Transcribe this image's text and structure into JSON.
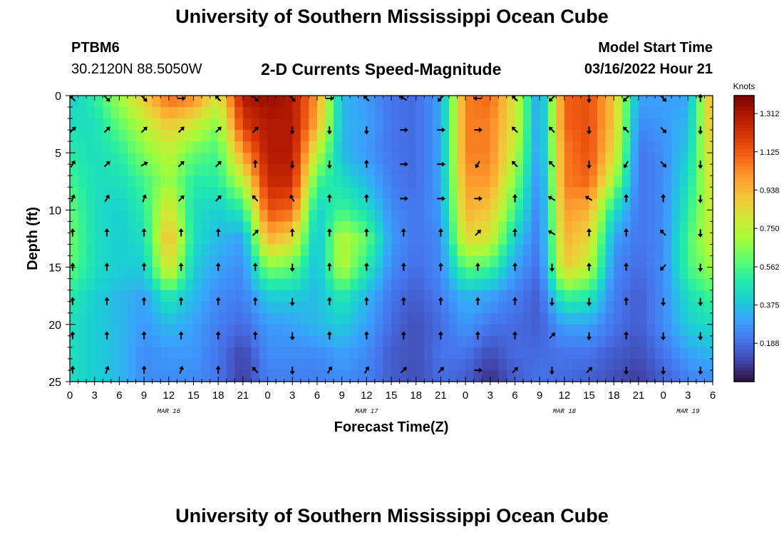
{
  "header": {
    "title": "University of Southern Mississippi Ocean Cube",
    "station": "PTBM6",
    "coords": "30.2120N  88.5050W",
    "subtitle": "2-D Currents Speed-Magnitude",
    "model_start_label": "Model Start Time",
    "model_start_value": "03/16/2022 Hour 21"
  },
  "footer": {
    "title": "University of Southern Mississippi Ocean Cube"
  },
  "chart_data": {
    "type": "heatmap",
    "title": "2-D Currents Speed-Magnitude",
    "xlabel": "Forecast Time(Z)",
    "ylabel": "Depth (ft)",
    "x_range_hours": [
      0,
      78
    ],
    "y_range_ft": [
      0,
      25
    ],
    "y_inverted": true,
    "x_tick_labels": [
      "0",
      "3",
      "6",
      "9",
      "12",
      "15",
      "18",
      "21",
      "0",
      "3",
      "6",
      "9",
      "12",
      "15",
      "18",
      "21",
      "0",
      "3",
      "6",
      "9",
      "12",
      "15",
      "18",
      "21",
      "0",
      "3",
      "6"
    ],
    "y_tick_labels": [
      "0",
      "5",
      "10",
      "15",
      "20",
      "25"
    ],
    "y_tick_values": [
      0,
      5,
      10,
      15,
      20,
      25
    ],
    "date_labels": [
      {
        "label": "MAR 16",
        "hour": 12
      },
      {
        "label": "MAR 17",
        "hour": 36
      },
      {
        "label": "MAR 18",
        "hour": 60
      },
      {
        "label": "MAR 19",
        "hour": 75
      }
    ],
    "colorbar": {
      "title": "Knots",
      "ticks": [
        "1.312",
        "1.125",
        "0.938",
        "0.750",
        "0.562",
        "0.375",
        "0.188"
      ],
      "tick_values": [
        1.312,
        1.125,
        0.938,
        0.75,
        0.562,
        0.375,
        0.188
      ],
      "min": 0.0,
      "max": 1.4,
      "colors": [
        "#30123b",
        "#4145ab",
        "#4675ed",
        "#39a2fc",
        "#1bcfd4",
        "#24eca6",
        "#61fc6c",
        "#a4fc3b",
        "#d1e834",
        "#f3c63a",
        "#fe9b2d",
        "#f36315",
        "#d93807",
        "#b11901",
        "#7a0403"
      ]
    },
    "speed_units": "knots",
    "speed_grid": {
      "hours": [
        0,
        3,
        6,
        9,
        12,
        15,
        18,
        21,
        24,
        27,
        30,
        33,
        36,
        39,
        42,
        45,
        48,
        51,
        54,
        57,
        60,
        63,
        66,
        69,
        72,
        75,
        78
      ],
      "depths_ft": [
        0,
        2.5,
        5,
        7.5,
        10,
        12.5,
        15,
        17.5,
        20,
        22.5,
        25
      ],
      "values": [
        [
          0.4,
          0.5,
          0.7,
          0.9,
          1.1,
          1.05,
          0.8,
          1.3,
          1.35,
          1.3,
          1.0,
          0.35,
          0.28,
          0.2,
          0.18,
          0.3,
          1.05,
          1.1,
          0.8,
          0.25,
          1.1,
          1.15,
          0.9,
          0.3,
          0.3,
          0.3,
          1.0
        ],
        [
          0.45,
          0.45,
          0.6,
          0.75,
          0.9,
          0.8,
          0.65,
          1.2,
          1.3,
          1.3,
          0.95,
          0.35,
          0.3,
          0.2,
          0.18,
          0.3,
          1.05,
          1.05,
          0.8,
          0.25,
          1.1,
          1.15,
          0.9,
          0.25,
          0.28,
          0.35,
          0.95
        ],
        [
          0.5,
          0.45,
          0.5,
          0.65,
          0.75,
          0.6,
          0.55,
          1.0,
          1.3,
          1.3,
          0.75,
          0.35,
          0.28,
          0.2,
          0.18,
          0.3,
          1.05,
          1.05,
          0.75,
          0.25,
          1.05,
          1.15,
          0.85,
          0.2,
          0.25,
          0.4,
          0.9
        ],
        [
          0.55,
          0.45,
          0.45,
          0.55,
          0.7,
          0.5,
          0.5,
          0.75,
          1.25,
          1.25,
          0.55,
          0.45,
          0.35,
          0.22,
          0.18,
          0.3,
          1.0,
          1.0,
          0.65,
          0.22,
          1.05,
          1.1,
          0.7,
          0.2,
          0.25,
          0.45,
          0.85
        ],
        [
          0.6,
          0.45,
          0.4,
          0.5,
          0.85,
          0.45,
          0.4,
          0.5,
          1.15,
          1.1,
          0.4,
          0.55,
          0.45,
          0.25,
          0.2,
          0.28,
          0.95,
          0.9,
          0.55,
          0.2,
          1.0,
          0.95,
          0.45,
          0.2,
          0.25,
          0.5,
          0.8
        ],
        [
          0.62,
          0.45,
          0.4,
          0.45,
          0.95,
          0.45,
          0.35,
          0.3,
          0.95,
          0.85,
          0.35,
          0.75,
          0.6,
          0.28,
          0.2,
          0.25,
          0.85,
          0.8,
          0.4,
          0.2,
          0.95,
          0.85,
          0.3,
          0.2,
          0.25,
          0.55,
          0.8
        ],
        [
          0.6,
          0.45,
          0.4,
          0.4,
          0.85,
          0.4,
          0.3,
          0.25,
          0.65,
          0.6,
          0.35,
          0.75,
          0.5,
          0.25,
          0.18,
          0.25,
          0.6,
          0.55,
          0.3,
          0.18,
          0.9,
          0.75,
          0.25,
          0.18,
          0.25,
          0.55,
          0.7
        ],
        [
          0.5,
          0.4,
          0.35,
          0.3,
          0.5,
          0.35,
          0.25,
          0.22,
          0.4,
          0.4,
          0.35,
          0.5,
          0.35,
          0.2,
          0.15,
          0.22,
          0.35,
          0.3,
          0.22,
          0.15,
          0.55,
          0.5,
          0.22,
          0.15,
          0.25,
          0.45,
          0.55
        ],
        [
          0.45,
          0.4,
          0.35,
          0.28,
          0.35,
          0.3,
          0.22,
          0.18,
          0.28,
          0.3,
          0.35,
          0.4,
          0.3,
          0.18,
          0.12,
          0.18,
          0.28,
          0.2,
          0.18,
          0.15,
          0.3,
          0.3,
          0.2,
          0.15,
          0.25,
          0.4,
          0.45
        ],
        [
          0.45,
          0.4,
          0.35,
          0.25,
          0.28,
          0.28,
          0.2,
          0.1,
          0.25,
          0.25,
          0.25,
          0.3,
          0.25,
          0.15,
          0.12,
          0.2,
          0.2,
          0.12,
          0.18,
          0.18,
          0.2,
          0.2,
          0.15,
          0.12,
          0.2,
          0.3,
          0.35
        ],
        [
          0.45,
          0.4,
          0.35,
          0.25,
          0.25,
          0.25,
          0.2,
          0.08,
          0.22,
          0.22,
          0.22,
          0.25,
          0.22,
          0.15,
          0.12,
          0.18,
          0.15,
          0.05,
          0.15,
          0.2,
          0.18,
          0.15,
          0.12,
          0.08,
          0.15,
          0.22,
          0.25
        ]
      ]
    },
    "vector_field": {
      "hours": [
        0,
        4.5,
        9,
        13.5,
        18,
        22.5,
        27,
        31.5,
        36,
        40.5,
        45,
        49.5,
        54,
        58.5,
        63,
        67.5,
        72,
        76.5
      ],
      "depths_ft": [
        0,
        3,
        6,
        9,
        12,
        15,
        18,
        21,
        24
      ],
      "direction_deg": [
        [
          315,
          135,
          135,
          90,
          315,
          135,
          135,
          90,
          315,
          300,
          225,
          270,
          315,
          225,
          180,
          225,
          135,
          0
        ],
        [
          45,
          45,
          45,
          45,
          45,
          45,
          180,
          180,
          180,
          90,
          90,
          90,
          315,
          315,
          180,
          315,
          135,
          180
        ],
        [
          30,
          45,
          60,
          45,
          45,
          0,
          180,
          180,
          0,
          90,
          90,
          210,
          315,
          315,
          180,
          210,
          135,
          180
        ],
        [
          20,
          30,
          20,
          45,
          45,
          315,
          330,
          0,
          0,
          90,
          90,
          90,
          0,
          300,
          300,
          0,
          0,
          180
        ],
        [
          0,
          0,
          0,
          0,
          0,
          45,
          0,
          0,
          0,
          0,
          0,
          45,
          0,
          300,
          0,
          0,
          315,
          180
        ],
        [
          0,
          0,
          0,
          0,
          0,
          0,
          180,
          0,
          0,
          0,
          0,
          0,
          0,
          180,
          0,
          0,
          225,
          180
        ],
        [
          0,
          0,
          0,
          0,
          0,
          0,
          180,
          0,
          0,
          0,
          0,
          0,
          0,
          180,
          180,
          0,
          180,
          180
        ],
        [
          0,
          0,
          0,
          0,
          0,
          0,
          180,
          0,
          0,
          0,
          0,
          0,
          0,
          45,
          180,
          0,
          180,
          180
        ],
        [
          0,
          20,
          0,
          20,
          0,
          315,
          180,
          30,
          30,
          45,
          45,
          90,
          45,
          180,
          45,
          180,
          180,
          180
        ]
      ]
    }
  }
}
